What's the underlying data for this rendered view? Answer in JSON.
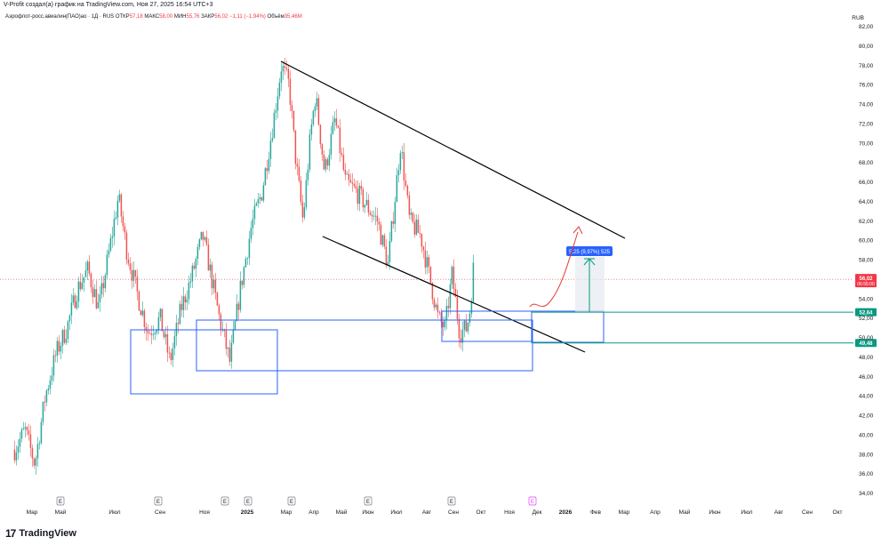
{
  "header": {
    "published_by": "V-Profit создал(а) график на TradingView.com, Ноя 27, 2025 16:54 UTC+3"
  },
  "legend": {
    "symbol": "Аэрофлот-росс.авиалин(ПАО)ао · 1Д · RUS",
    "open_label": "ОТКР",
    "open_value": "57,18",
    "high_label": "МАКС",
    "high_value": "58,00",
    "low_label": "МИН",
    "low_value": "55,76",
    "close_label": "ЗАКР",
    "close_value": "56,02",
    "change_value": "−1,11 (−1,94%)",
    "volume_label": "Объём",
    "volume_value": "35,46M"
  },
  "currency": "RUB",
  "footer": {
    "brand": "TradingView"
  },
  "colors": {
    "up": "#26a69a",
    "down": "#ef5350",
    "box": "#2962ff",
    "level": "#089981",
    "price": "#f23645",
    "projection": "#2962ff"
  },
  "chart_data": {
    "type": "candlestick",
    "title": "",
    "xlabel": "",
    "ylabel": "",
    "ylim": [
      33,
      83
    ],
    "y_ticks": [
      "34,00",
      "36,00",
      "38,00",
      "40,00",
      "42,00",
      "44,00",
      "46,00",
      "48,00",
      "50,00",
      "52,00",
      "54,00",
      "56,00",
      "58,00",
      "60,00",
      "62,00",
      "64,00",
      "66,00",
      "68,00",
      "70,00",
      "72,00",
      "74,00",
      "76,00",
      "78,00",
      "80,00",
      "82,00"
    ],
    "x_ticks": [
      "Мар",
      "Май",
      "Июл",
      "Сен",
      "Ноя",
      "2025",
      "Мар",
      "Апр",
      "Май",
      "Июн",
      "Июл",
      "Авг",
      "Сен",
      "Окт",
      "Ноя",
      "Дек",
      "2026",
      "Фев",
      "Мар",
      "Апр",
      "Май",
      "Июн",
      "Июл",
      "Авг",
      "Сен",
      "Окт"
    ],
    "earnings_markers": [
      "E",
      "E",
      "E",
      "E",
      "E",
      "E",
      "E",
      "E",
      "E"
    ],
    "series": [
      {
        "price_path": [
          [
            "2024-02-05",
            38.5
          ],
          [
            "2024-02-20",
            40.5
          ],
          [
            "2024-03-05",
            37.0
          ],
          [
            "2024-03-20",
            44.0
          ],
          [
            "2024-04-05",
            48.5
          ],
          [
            "2024-04-20",
            51.0
          ],
          [
            "2024-05-05",
            55.0
          ],
          [
            "2024-05-20",
            57.0
          ],
          [
            "2024-06-05",
            53.0
          ],
          [
            "2024-06-20",
            59.0
          ],
          [
            "2024-07-03",
            64.5
          ],
          [
            "2024-07-15",
            59.0
          ],
          [
            "2024-08-01",
            54.0
          ],
          [
            "2024-08-15",
            50.5
          ],
          [
            "2024-09-01",
            52.0
          ],
          [
            "2024-09-15",
            47.5
          ],
          [
            "2024-10-01",
            53.0
          ],
          [
            "2024-10-15",
            56.0
          ],
          [
            "2024-11-01",
            60.5
          ],
          [
            "2024-11-10",
            57.5
          ],
          [
            "2024-11-25",
            52.0
          ],
          [
            "2024-12-10",
            47.5
          ],
          [
            "2024-12-25",
            55.0
          ],
          [
            "2025-01-10",
            61.5
          ],
          [
            "2025-01-25",
            65.0
          ],
          [
            "2025-02-10",
            72.0
          ],
          [
            "2025-02-22",
            78.0
          ],
          [
            "2025-03-05",
            76.0
          ],
          [
            "2025-03-15",
            68.0
          ],
          [
            "2025-03-25",
            62.0
          ],
          [
            "2025-04-05",
            71.0
          ],
          [
            "2025-04-12",
            75.0
          ],
          [
            "2025-04-25",
            67.0
          ],
          [
            "2025-05-10",
            72.5
          ],
          [
            "2025-05-25",
            66.0
          ],
          [
            "2025-06-10",
            65.0
          ],
          [
            "2025-06-25",
            63.5
          ],
          [
            "2025-07-10",
            62.0
          ],
          [
            "2025-07-25",
            57.5
          ],
          [
            "2025-08-05",
            65.0
          ],
          [
            "2025-08-12",
            70.0
          ],
          [
            "2025-08-25",
            62.0
          ],
          [
            "2025-09-10",
            60.5
          ],
          [
            "2025-09-25",
            55.5
          ],
          [
            "2025-10-05",
            52.0
          ],
          [
            "2025-10-15",
            51.0
          ],
          [
            "2025-10-25",
            56.5
          ],
          [
            "2025-11-05",
            50.5
          ],
          [
            "2025-11-15",
            51.0
          ],
          [
            "2025-11-20",
            53.0
          ],
          [
            "2025-11-25",
            57.5
          ],
          [
            "2025-11-27",
            56.0
          ]
        ]
      }
    ],
    "last_price": "56,02",
    "countdown": "06:55:00",
    "levels": [
      {
        "value": 52.64,
        "label": "52,64"
      },
      {
        "value": 49.48,
        "label": "49,48"
      }
    ],
    "measure_label": "5,25 (9,97%) 525"
  }
}
